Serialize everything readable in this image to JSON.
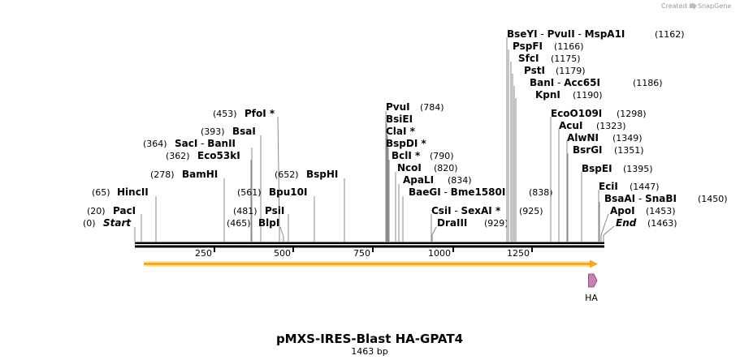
{
  "credit": {
    "created_by": "Created by",
    "brand": "SnapGene"
  },
  "title": "pMXS-IRES-Blast HA-GPAT4",
  "length_label": "1463 bp",
  "sequence_length": 1463,
  "ruler_ticks": [
    "250",
    "500",
    "750",
    "1000",
    "1250"
  ],
  "features": [
    {
      "name": "orf-arrow",
      "start": 20,
      "end": 1463,
      "color": "#f6a623"
    },
    {
      "name": "HA",
      "label": "HA",
      "start": 1379,
      "end": 1406,
      "color": "#c97fb0"
    }
  ],
  "sites": [
    {
      "id": "start",
      "segments": [
        {
          "text": "Start",
          "style": "italic"
        }
      ],
      "pos_text": "(0)",
      "pos": 0
    },
    {
      "id": "paci",
      "segments": [
        {
          "text": "PacI",
          "style": "bold"
        }
      ],
      "pos_text": "(20)",
      "pos": 20
    },
    {
      "id": "hincii",
      "segments": [
        {
          "text": "HincII",
          "style": "bold"
        }
      ],
      "pos_text": "(65)",
      "pos": 65
    },
    {
      "id": "bamhi",
      "segments": [
        {
          "text": "BamHI",
          "style": "bold"
        }
      ],
      "pos_text": "(278)",
      "pos": 278
    },
    {
      "id": "eco53ki",
      "segments": [
        {
          "text": "Eco53kI",
          "style": "bold"
        }
      ],
      "pos_text": "(362)",
      "pos": 362
    },
    {
      "id": "saci-banii",
      "segments": [
        {
          "text": "SacI",
          "style": "bold"
        },
        {
          "text": " - ",
          "style": "normal"
        },
        {
          "text": "BanII",
          "style": "bold"
        }
      ],
      "pos_text": "(364)",
      "pos": 364
    },
    {
      "id": "bsai",
      "segments": [
        {
          "text": "BsaI",
          "style": "bold"
        }
      ],
      "pos_text": "(393)",
      "pos": 393
    },
    {
      "id": "pfoi",
      "segments": [
        {
          "text": "PfoI *",
          "style": "bold"
        }
      ],
      "pos_text": "(453)",
      "pos": 453
    },
    {
      "id": "blpi",
      "segments": [
        {
          "text": "BlpI",
          "style": "bold"
        }
      ],
      "pos_text": "(465)",
      "pos": 465
    },
    {
      "id": "psii",
      "segments": [
        {
          "text": "PsiI",
          "style": "bold"
        }
      ],
      "pos_text": "(481)",
      "pos": 481
    },
    {
      "id": "bpu10i",
      "segments": [
        {
          "text": "Bpu10I",
          "style": "bold"
        }
      ],
      "pos_text": "(561)",
      "pos": 561
    },
    {
      "id": "bsphi",
      "segments": [
        {
          "text": "BspHI",
          "style": "bold"
        }
      ],
      "pos_text": "(652)",
      "pos": 652
    },
    {
      "id": "pvui",
      "segments": [
        {
          "text": "PvuI",
          "style": "bold"
        }
      ],
      "pos_text": "(784)",
      "pos": 784
    },
    {
      "id": "bsiei",
      "segments": [
        {
          "text": "BsiEI",
          "style": "bold"
        }
      ],
      "pos_text": "",
      "pos": 784
    },
    {
      "id": "clai",
      "segments": [
        {
          "text": "ClaI *",
          "style": "bold"
        }
      ],
      "pos_text": "",
      "pos": 786
    },
    {
      "id": "bspdi",
      "segments": [
        {
          "text": "BspDI *",
          "style": "bold"
        }
      ],
      "pos_text": "",
      "pos": 786
    },
    {
      "id": "bcli",
      "segments": [
        {
          "text": "BclI *",
          "style": "bold"
        }
      ],
      "pos_text": "(790)",
      "pos": 790
    },
    {
      "id": "ncoi",
      "segments": [
        {
          "text": "NcoI",
          "style": "bold"
        }
      ],
      "pos_text": "(820)",
      "pos": 820
    },
    {
      "id": "apali",
      "segments": [
        {
          "text": "ApaLI",
          "style": "bold"
        }
      ],
      "pos_text": "(834)",
      "pos": 834
    },
    {
      "id": "baegi-bme1580i",
      "segments": [
        {
          "text": "BaeGI",
          "style": "bold"
        },
        {
          "text": " - ",
          "style": "normal"
        },
        {
          "text": "Bme1580I",
          "style": "bold"
        }
      ],
      "pos_text": "(838)",
      "pos": 838
    },
    {
      "id": "csii-sexai",
      "segments": [
        {
          "text": "CsiI",
          "style": "bold"
        },
        {
          "text": " - ",
          "style": "normal"
        },
        {
          "text": "SexAI *",
          "style": "bold"
        }
      ],
      "pos_text": "(925)",
      "pos": 925
    },
    {
      "id": "draiii",
      "segments": [
        {
          "text": "DraIII",
          "style": "bold"
        }
      ],
      "pos_text": "(929)",
      "pos": 929
    },
    {
      "id": "bseyi-pvuii-mspa1i",
      "segments": [
        {
          "text": "BseYI",
          "style": "bold"
        },
        {
          "text": " - ",
          "style": "normal"
        },
        {
          "text": "PvuII",
          "style": "bold"
        },
        {
          "text": " - ",
          "style": "normal"
        },
        {
          "text": "MspA1I",
          "style": "bold"
        }
      ],
      "pos_text": "(1162)",
      "pos": 1162
    },
    {
      "id": "pspfi",
      "segments": [
        {
          "text": "PspFI",
          "style": "bold"
        }
      ],
      "pos_text": "(1166)",
      "pos": 1166
    },
    {
      "id": "sfci",
      "segments": [
        {
          "text": "SfcI",
          "style": "bold"
        }
      ],
      "pos_text": "(1175)",
      "pos": 1175
    },
    {
      "id": "psti",
      "segments": [
        {
          "text": "PstI",
          "style": "bold"
        }
      ],
      "pos_text": "(1179)",
      "pos": 1179
    },
    {
      "id": "bani-acc65i",
      "segments": [
        {
          "text": "BanI",
          "style": "bold"
        },
        {
          "text": " - ",
          "style": "normal"
        },
        {
          "text": "Acc65I",
          "style": "bold"
        }
      ],
      "pos_text": "(1186)",
      "pos": 1186
    },
    {
      "id": "kpni",
      "segments": [
        {
          "text": "KpnI",
          "style": "bold"
        }
      ],
      "pos_text": "(1190)",
      "pos": 1190
    },
    {
      "id": "ecoo109i",
      "segments": [
        {
          "text": "EcoO109I",
          "style": "bold"
        }
      ],
      "pos_text": "(1298)",
      "pos": 1298
    },
    {
      "id": "acui",
      "segments": [
        {
          "text": "AcuI",
          "style": "bold"
        }
      ],
      "pos_text": "(1323)",
      "pos": 1323
    },
    {
      "id": "alwni",
      "segments": [
        {
          "text": "AlwNI",
          "style": "bold"
        }
      ],
      "pos_text": "(1349)",
      "pos": 1349
    },
    {
      "id": "bsrgi",
      "segments": [
        {
          "text": "BsrGI",
          "style": "bold"
        }
      ],
      "pos_text": "(1351)",
      "pos": 1351
    },
    {
      "id": "bspei",
      "segments": [
        {
          "text": "BspEI",
          "style": "bold"
        }
      ],
      "pos_text": "(1395)",
      "pos": 1395
    },
    {
      "id": "ecii",
      "segments": [
        {
          "text": "EciI",
          "style": "bold"
        }
      ],
      "pos_text": "(1447)",
      "pos": 1447
    },
    {
      "id": "bsaai-snabi",
      "segments": [
        {
          "text": "BsaAI",
          "style": "bold"
        },
        {
          "text": " - ",
          "style": "normal"
        },
        {
          "text": "SnaBI",
          "style": "bold"
        }
      ],
      "pos_text": "(1450)",
      "pos": 1450
    },
    {
      "id": "apoi",
      "segments": [
        {
          "text": "ApoI",
          "style": "bold"
        }
      ],
      "pos_text": "(1453)",
      "pos": 1453
    },
    {
      "id": "end",
      "segments": [
        {
          "text": "End",
          "style": "italic"
        }
      ],
      "pos_text": "(1463)",
      "pos": 1463
    }
  ]
}
